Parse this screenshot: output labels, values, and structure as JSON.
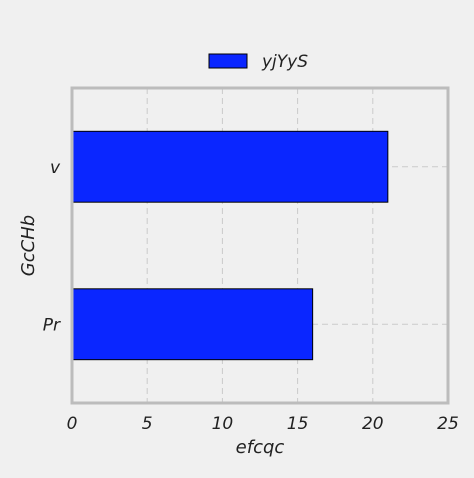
{
  "chart_data": {
    "type": "bar",
    "orientation": "horizontal",
    "title": "",
    "xlabel": "efcqc",
    "ylabel": "GcCHb",
    "categories": [
      "Pr",
      "v"
    ],
    "series": [
      {
        "name": "yjYyS",
        "values": [
          16,
          21
        ],
        "color": "#0a26ff"
      }
    ],
    "xlim": [
      0,
      25
    ],
    "xticks": [
      0,
      5,
      10,
      15,
      20,
      25
    ],
    "grid": true,
    "legend_position": "top-center",
    "background": "#f0f0f0",
    "axes_edge_color": "#bcbcbc"
  }
}
